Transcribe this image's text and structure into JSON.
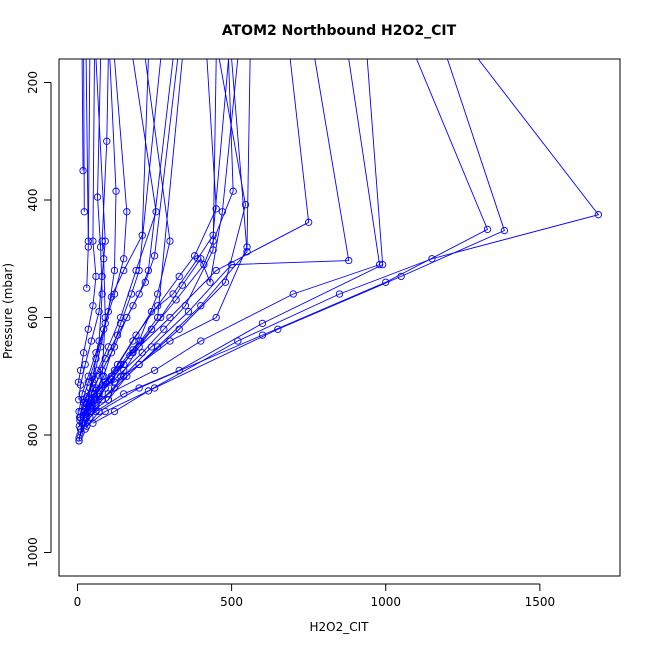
{
  "chart_data": {
    "type": "line",
    "title": "ATOM2 Northbound H2O2_CIT",
    "xlabel": "H2O2_CIT",
    "ylabel": "Pressure (mbar)",
    "xlim": [
      -60,
      1760
    ],
    "ylim": [
      1040,
      160
    ],
    "y_reversed": true,
    "x_ticks": [
      0,
      500,
      1000,
      1500
    ],
    "y_ticks": [
      200,
      400,
      600,
      800,
      1000
    ],
    "series_color": "#0000ff",
    "marker": "open-circle",
    "series": [
      {
        "points": [
          [
            10,
            790
          ],
          [
            30,
            760
          ],
          [
            55,
            740
          ],
          [
            80,
            700
          ],
          [
            90,
            600
          ],
          [
            85,
            500
          ],
          [
            80,
            470
          ],
          [
            95,
            300
          ],
          [
            100,
            160
          ]
        ]
      },
      {
        "points": [
          [
            5,
            810
          ],
          [
            20,
            770
          ],
          [
            50,
            720
          ],
          [
            120,
            710
          ],
          [
            200,
            680
          ],
          [
            300,
            640
          ],
          [
            450,
            600
          ],
          [
            550,
            480
          ],
          [
            560,
            160
          ]
        ]
      },
      {
        "points": [
          [
            15,
            780
          ],
          [
            40,
            750
          ],
          [
            100,
            730
          ],
          [
            250,
            690
          ],
          [
            400,
            640
          ],
          [
            700,
            560
          ],
          [
            980,
            510
          ],
          [
            880,
            160
          ]
        ]
      },
      {
        "points": [
          [
            20,
            780
          ],
          [
            60,
            760
          ],
          [
            150,
            730
          ],
          [
            330,
            690
          ],
          [
            600,
            610
          ],
          [
            990,
            510
          ],
          [
            940,
            160
          ]
        ]
      },
      {
        "points": [
          [
            25,
            790
          ],
          [
            70,
            760
          ],
          [
            200,
            720
          ],
          [
            600,
            630
          ],
          [
            1000,
            540
          ],
          [
            1330,
            450
          ],
          [
            1100,
            160
          ]
        ]
      },
      {
        "points": [
          [
            30,
            785
          ],
          [
            90,
            760
          ],
          [
            250,
            720
          ],
          [
            650,
            620
          ],
          [
            1050,
            530
          ],
          [
            1385,
            452
          ],
          [
            1200,
            160
          ]
        ]
      },
      {
        "points": [
          [
            50,
            780
          ],
          [
            120,
            760
          ],
          [
            230,
            725
          ],
          [
            520,
            640
          ],
          [
            850,
            560
          ],
          [
            1150,
            500
          ],
          [
            1690,
            425
          ],
          [
            1300,
            160
          ]
        ]
      },
      {
        "points": [
          [
            10,
            770
          ],
          [
            35,
            750
          ],
          [
            60,
            720
          ],
          [
            110,
            700
          ],
          [
            180,
            660
          ],
          [
            300,
            600
          ],
          [
            450,
            520
          ],
          [
            750,
            438
          ],
          [
            690,
            160
          ]
        ]
      },
      {
        "points": [
          [
            5,
            805
          ],
          [
            25,
            780
          ],
          [
            45,
            760
          ],
          [
            100,
            740
          ],
          [
            160,
            700
          ],
          [
            260,
            650
          ],
          [
            400,
            580
          ],
          [
            550,
            488
          ],
          [
            500,
            160
          ]
        ]
      },
      {
        "points": [
          [
            8,
            800
          ],
          [
            30,
            770
          ],
          [
            60,
            750
          ],
          [
            120,
            720
          ],
          [
            200,
            680
          ],
          [
            330,
            620
          ],
          [
            480,
            540
          ],
          [
            545,
            408
          ],
          [
            460,
            160
          ]
        ]
      },
      {
        "points": [
          [
            12,
            795
          ],
          [
            40,
            770
          ],
          [
            80,
            740
          ],
          [
            150,
            700
          ],
          [
            240,
            650
          ],
          [
            360,
            590
          ],
          [
            500,
            510
          ],
          [
            880,
            503
          ],
          [
            770,
            160
          ]
        ]
      },
      {
        "points": [
          [
            6,
            785
          ],
          [
            25,
            760
          ],
          [
            55,
            735
          ],
          [
            90,
            710
          ],
          [
            140,
            680
          ],
          [
            200,
            640
          ],
          [
            260,
            560
          ],
          [
            300,
            470
          ],
          [
            220,
            160
          ]
        ]
      },
      {
        "points": [
          [
            8,
            775
          ],
          [
            20,
            745
          ],
          [
            40,
            720
          ],
          [
            65,
            690
          ],
          [
            100,
            650
          ],
          [
            140,
            600
          ],
          [
            190,
            520
          ],
          [
            255,
            420
          ],
          [
            180,
            160
          ]
        ]
      },
      {
        "points": [
          [
            5,
            760
          ],
          [
            15,
            730
          ],
          [
            35,
            700
          ],
          [
            60,
            660
          ],
          [
            90,
            610
          ],
          [
            120,
            560
          ],
          [
            150,
            500
          ],
          [
            160,
            420
          ],
          [
            120,
            160
          ]
        ]
      },
      {
        "points": [
          [
            4,
            740
          ],
          [
            10,
            715
          ],
          [
            25,
            680
          ],
          [
            45,
            640
          ],
          [
            70,
            590
          ],
          [
            80,
            530
          ],
          [
            90,
            470
          ],
          [
            60,
            160
          ]
        ]
      },
      {
        "points": [
          [
            3,
            710
          ],
          [
            10,
            690
          ],
          [
            20,
            660
          ],
          [
            35,
            620
          ],
          [
            50,
            580
          ],
          [
            60,
            530
          ],
          [
            50,
            470
          ],
          [
            55,
            160
          ]
        ]
      },
      {
        "points": [
          [
            5,
            810
          ],
          [
            15,
            780
          ],
          [
            30,
            745
          ],
          [
            50,
            710
          ],
          [
            75,
            650
          ],
          [
            100,
            590
          ],
          [
            120,
            520
          ],
          [
            125,
            385
          ],
          [
            105,
            160
          ]
        ]
      },
      {
        "points": [
          [
            10,
            790
          ],
          [
            20,
            770
          ],
          [
            35,
            740
          ],
          [
            50,
            700
          ],
          [
            70,
            640
          ],
          [
            80,
            560
          ],
          [
            75,
            480
          ],
          [
            65,
            395
          ],
          [
            75,
            160
          ]
        ]
      },
      {
        "points": [
          [
            15,
            780
          ],
          [
            30,
            755
          ],
          [
            55,
            730
          ],
          [
            85,
            700
          ],
          [
            110,
            660
          ],
          [
            140,
            610
          ],
          [
            175,
            560
          ],
          [
            200,
            520
          ],
          [
            270,
            160
          ]
        ]
      },
      {
        "points": [
          [
            20,
            770
          ],
          [
            45,
            745
          ],
          [
            80,
            715
          ],
          [
            130,
            680
          ],
          [
            190,
            630
          ],
          [
            260,
            580
          ],
          [
            330,
            530
          ],
          [
            380,
            495
          ],
          [
            450,
            415
          ],
          [
            420,
            160
          ]
        ]
      },
      {
        "points": [
          [
            25,
            765
          ],
          [
            60,
            740
          ],
          [
            110,
            705
          ],
          [
            170,
            665
          ],
          [
            240,
            620
          ],
          [
            320,
            570
          ],
          [
            410,
            510
          ],
          [
            440,
            470
          ],
          [
            505,
            385
          ],
          [
            490,
            160
          ]
        ]
      },
      {
        "points": [
          [
            12,
            760
          ],
          [
            30,
            735
          ],
          [
            55,
            705
          ],
          [
            90,
            670
          ],
          [
            130,
            630
          ],
          [
            180,
            580
          ],
          [
            220,
            540
          ],
          [
            250,
            495
          ],
          [
            325,
            160
          ]
        ]
      },
      {
        "points": [
          [
            7,
            770
          ],
          [
            18,
            740
          ],
          [
            35,
            710
          ],
          [
            60,
            670
          ],
          [
            85,
            620
          ],
          [
            110,
            565
          ],
          [
            150,
            520
          ],
          [
            210,
            460
          ],
          [
            230,
            160
          ]
        ]
      },
      {
        "points": [
          [
            18,
            350
          ],
          [
            15,
            160
          ]
        ]
      },
      {
        "points": [
          [
            22,
            420
          ],
          [
            20,
            160
          ]
        ]
      },
      {
        "points": [
          [
            35,
            470
          ],
          [
            28,
            160
          ]
        ]
      },
      {
        "points": [
          [
            30,
            550
          ],
          [
            35,
            480
          ],
          [
            40,
            160
          ]
        ]
      },
      {
        "points": [
          [
            100,
            740
          ],
          [
            140,
            700
          ],
          [
            200,
            650
          ],
          [
            270,
            600
          ],
          [
            340,
            545
          ],
          [
            400,
            500
          ],
          [
            430,
            540
          ],
          [
            470,
            420
          ],
          [
            520,
            160
          ]
        ]
      },
      {
        "points": [
          [
            70,
            730
          ],
          [
            120,
            690
          ],
          [
            180,
            640
          ],
          [
            240,
            590
          ],
          [
            310,
            560
          ],
          [
            390,
            500
          ],
          [
            440,
            460
          ],
          [
            490,
            160
          ]
        ]
      },
      {
        "points": [
          [
            45,
            730
          ],
          [
            80,
            690
          ],
          [
            120,
            650
          ],
          [
            160,
            600
          ],
          [
            200,
            560
          ],
          [
            230,
            520
          ],
          [
            310,
            160
          ]
        ]
      },
      {
        "points": [
          [
            40,
            760
          ],
          [
            70,
            735
          ],
          [
            105,
            710
          ],
          [
            150,
            680
          ],
          [
            180,
            655
          ],
          [
            205,
            640
          ],
          [
            260,
            600
          ],
          [
            340,
            160
          ]
        ]
      },
      {
        "points": [
          [
            50,
            755
          ],
          [
            90,
            720
          ],
          [
            150,
            690
          ],
          [
            210,
            660
          ],
          [
            280,
            620
          ],
          [
            350,
            580
          ],
          [
            440,
            485
          ],
          [
            450,
            160
          ]
        ]
      }
    ]
  }
}
